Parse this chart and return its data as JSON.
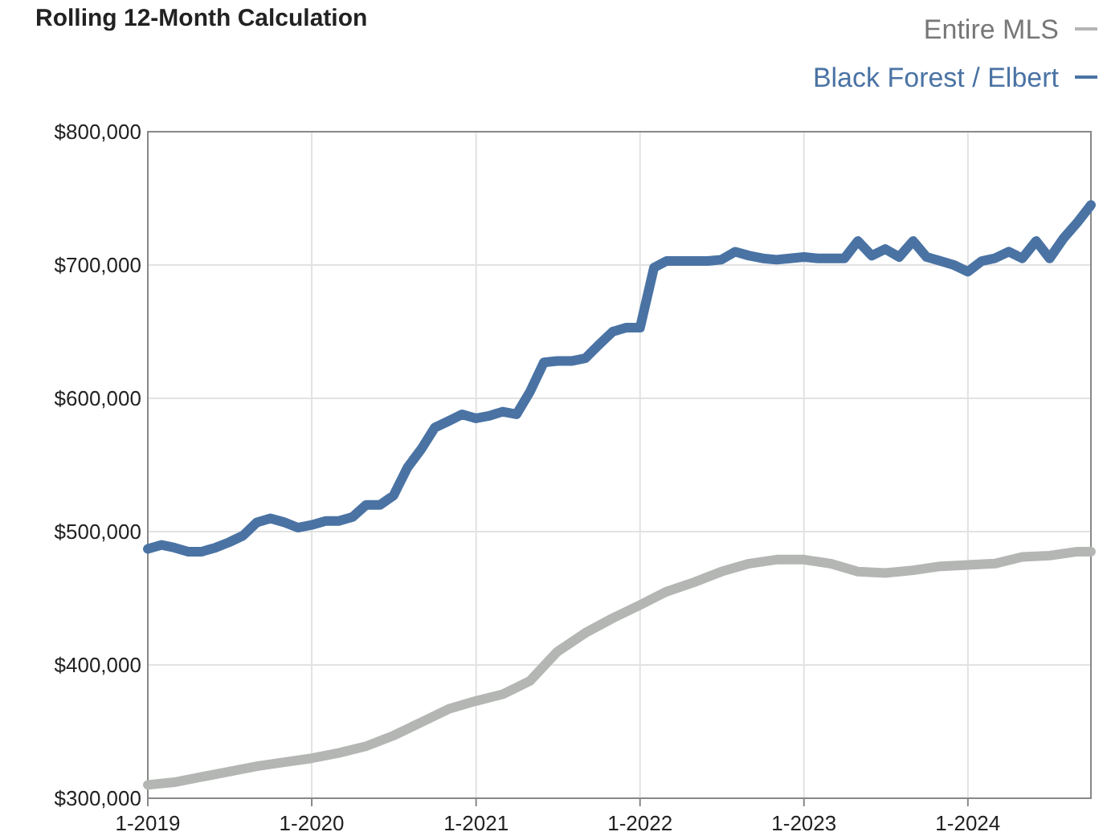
{
  "chart_data": {
    "type": "line",
    "title": "Rolling 12-Month Calculation",
    "xlim": [
      "2019-01",
      "2024-10"
    ],
    "xticks": [
      {
        "value": "2019-01",
        "label": "1-2019"
      },
      {
        "value": "2020-01",
        "label": "1-2020"
      },
      {
        "value": "2021-01",
        "label": "1-2021"
      },
      {
        "value": "2022-01",
        "label": "1-2022"
      },
      {
        "value": "2023-01",
        "label": "1-2023"
      },
      {
        "value": "2024-01",
        "label": "1-2024"
      }
    ],
    "ylim": [
      300000,
      800000
    ],
    "yticks": [
      {
        "value": 300000,
        "label": "$300,000"
      },
      {
        "value": 400000,
        "label": "$400,000"
      },
      {
        "value": 500000,
        "label": "$500,000"
      },
      {
        "value": 600000,
        "label": "$600,000"
      },
      {
        "value": 700000,
        "label": "$700,000"
      },
      {
        "value": 800000,
        "label": "$800,000"
      }
    ],
    "grid": true,
    "legend": "top right",
    "line_style": "solid",
    "marker": "none",
    "series": [
      {
        "name": "Entire MLS",
        "color": "#b4b6b4",
        "x": [
          "2019-01",
          "2019-03",
          "2019-05",
          "2019-07",
          "2019-09",
          "2019-11",
          "2020-01",
          "2020-03",
          "2020-05",
          "2020-07",
          "2020-09",
          "2020-11",
          "2021-01",
          "2021-03",
          "2021-05",
          "2021-07",
          "2021-09",
          "2021-11",
          "2022-01",
          "2022-03",
          "2022-05",
          "2022-07",
          "2022-09",
          "2022-11",
          "2023-01",
          "2023-03",
          "2023-05",
          "2023-07",
          "2023-09",
          "2023-11",
          "2024-01",
          "2024-03",
          "2024-05",
          "2024-07",
          "2024-09",
          "2024-10"
        ],
        "values": [
          310000,
          312000,
          316000,
          320000,
          324000,
          327000,
          330000,
          334000,
          339000,
          347000,
          357000,
          367000,
          373000,
          378000,
          388000,
          410000,
          424000,
          435000,
          445000,
          455000,
          462000,
          470000,
          476000,
          479000,
          479000,
          476000,
          470000,
          469000,
          471000,
          474000,
          475000,
          476000,
          481000,
          482000,
          485000,
          485000
        ]
      },
      {
        "name": "Black Forest / Elbert",
        "color": "#4a73a4",
        "x": [
          "2019-01",
          "2019-02",
          "2019-03",
          "2019-04",
          "2019-05",
          "2019-06",
          "2019-07",
          "2019-08",
          "2019-09",
          "2019-10",
          "2019-11",
          "2019-12",
          "2020-01",
          "2020-02",
          "2020-03",
          "2020-04",
          "2020-05",
          "2020-06",
          "2020-07",
          "2020-08",
          "2020-09",
          "2020-10",
          "2020-11",
          "2020-12",
          "2021-01",
          "2021-02",
          "2021-03",
          "2021-04",
          "2021-05",
          "2021-06",
          "2021-07",
          "2021-08",
          "2021-09",
          "2021-10",
          "2021-11",
          "2021-12",
          "2022-01",
          "2022-02",
          "2022-03",
          "2022-04",
          "2022-05",
          "2022-06",
          "2022-07",
          "2022-08",
          "2022-09",
          "2022-10",
          "2022-11",
          "2022-12",
          "2023-01",
          "2023-02",
          "2023-03",
          "2023-04",
          "2023-05",
          "2023-06",
          "2023-07",
          "2023-08",
          "2023-09",
          "2023-10",
          "2023-11",
          "2023-12",
          "2024-01",
          "2024-02",
          "2024-03",
          "2024-04",
          "2024-05",
          "2024-06",
          "2024-07",
          "2024-08",
          "2024-09",
          "2024-10"
        ],
        "values": [
          487000,
          490000,
          488000,
          485000,
          485000,
          488000,
          492000,
          497000,
          507000,
          510000,
          507000,
          503000,
          505000,
          508000,
          508000,
          511000,
          520000,
          520000,
          527000,
          548000,
          562000,
          578000,
          583000,
          588000,
          585000,
          587000,
          590000,
          588000,
          605000,
          627000,
          628000,
          628000,
          630000,
          640000,
          650000,
          653000,
          653000,
          698000,
          703000,
          703000,
          703000,
          703000,
          704000,
          710000,
          707000,
          705000,
          704000,
          705000,
          706000,
          705000,
          705000,
          705000,
          718000,
          707000,
          712000,
          706000,
          718000,
          706000,
          703000,
          700000,
          695000,
          703000,
          705000,
          710000,
          705000,
          718000,
          705000,
          720000,
          732000,
          745000
        ]
      }
    ]
  }
}
